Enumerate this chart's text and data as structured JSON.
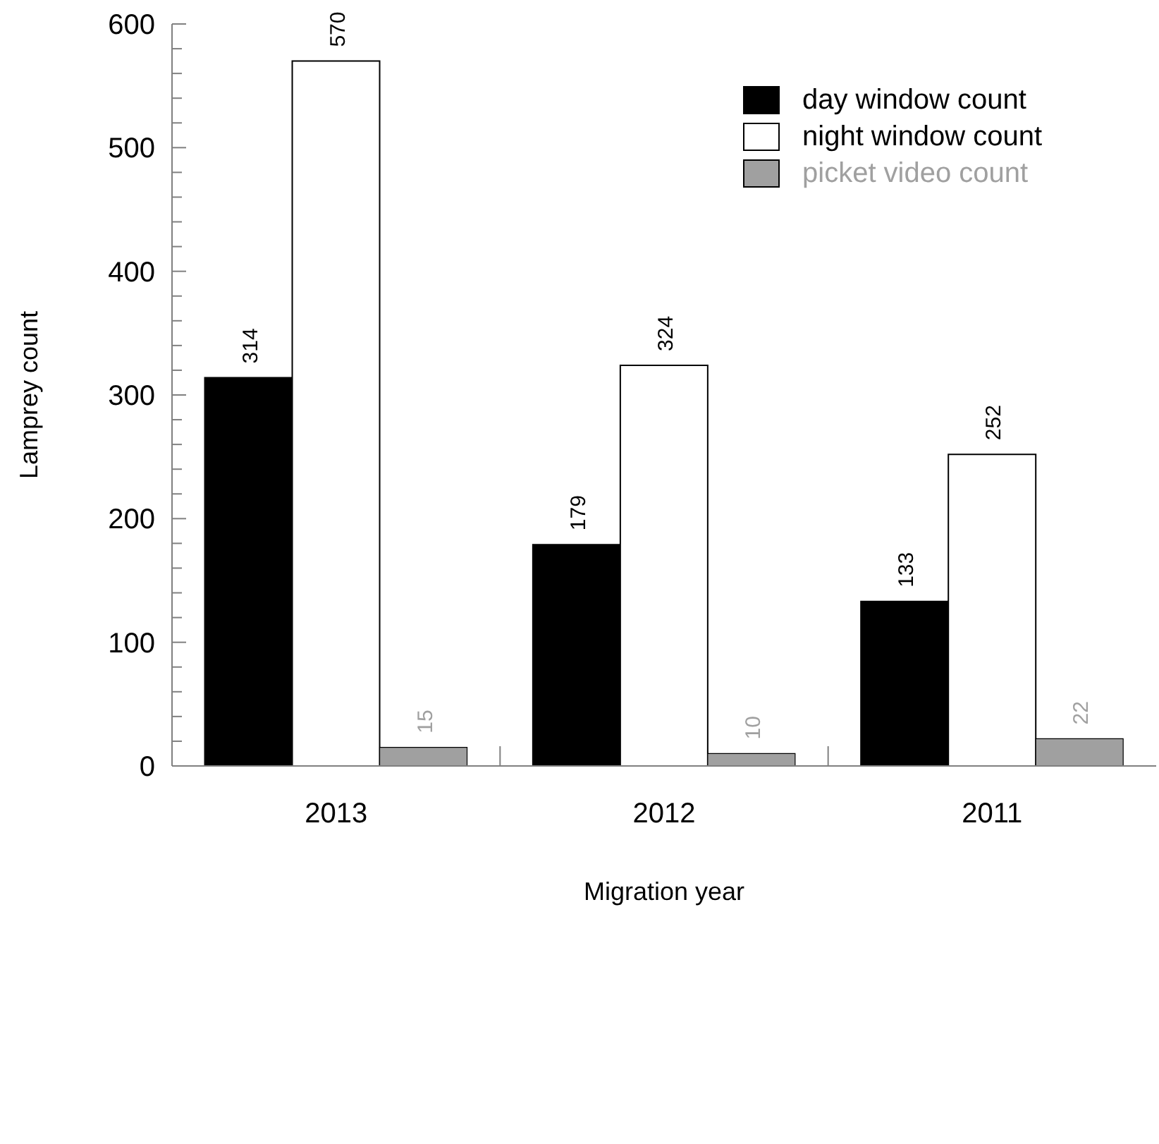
{
  "chart_data": {
    "type": "bar",
    "xlabel": "Migration year",
    "ylabel": "Lamprey count",
    "categories": [
      "2013",
      "2012",
      "2011"
    ],
    "series": [
      {
        "name": "day window count",
        "color": "#000000",
        "values": [
          314,
          179,
          133
        ]
      },
      {
        "name": "night window count",
        "color": "#ffffff",
        "values": [
          570,
          324,
          252
        ]
      },
      {
        "name": "picket video count",
        "color": "#a0a0a0",
        "values": [
          15,
          10,
          22
        ]
      }
    ],
    "ylim": [
      0,
      600
    ],
    "yticks": [
      0,
      {
        "value": 20,
        "label": null
      },
      {
        "value": 40,
        "label": null
      },
      {
        "value": 60,
        "label": null
      },
      {
        "value": 80,
        "label": null
      },
      100,
      {
        "value": 120,
        "label": null
      },
      {
        "value": 140,
        "label": null
      },
      {
        "value": 160,
        "label": null
      },
      {
        "value": 180,
        "label": null
      },
      200,
      {
        "value": 220,
        "label": null
      },
      {
        "value": 240,
        "label": null
      },
      {
        "value": 260,
        "label": null
      },
      {
        "value": 280,
        "label": null
      },
      300,
      {
        "value": 320,
        "label": null
      },
      {
        "value": 340,
        "label": null
      },
      {
        "value": 360,
        "label": null
      },
      {
        "value": 380,
        "label": null
      },
      400,
      {
        "value": 420,
        "label": null
      },
      {
        "value": 440,
        "label": null
      },
      {
        "value": 460,
        "label": null
      },
      {
        "value": 480,
        "label": null
      },
      500,
      {
        "value": 520,
        "label": null
      },
      {
        "value": 540,
        "label": null
      },
      {
        "value": 560,
        "label": null
      },
      {
        "value": 580,
        "label": null
      },
      600
    ],
    "data_labels": true,
    "legend": "top right",
    "grid": false
  }
}
